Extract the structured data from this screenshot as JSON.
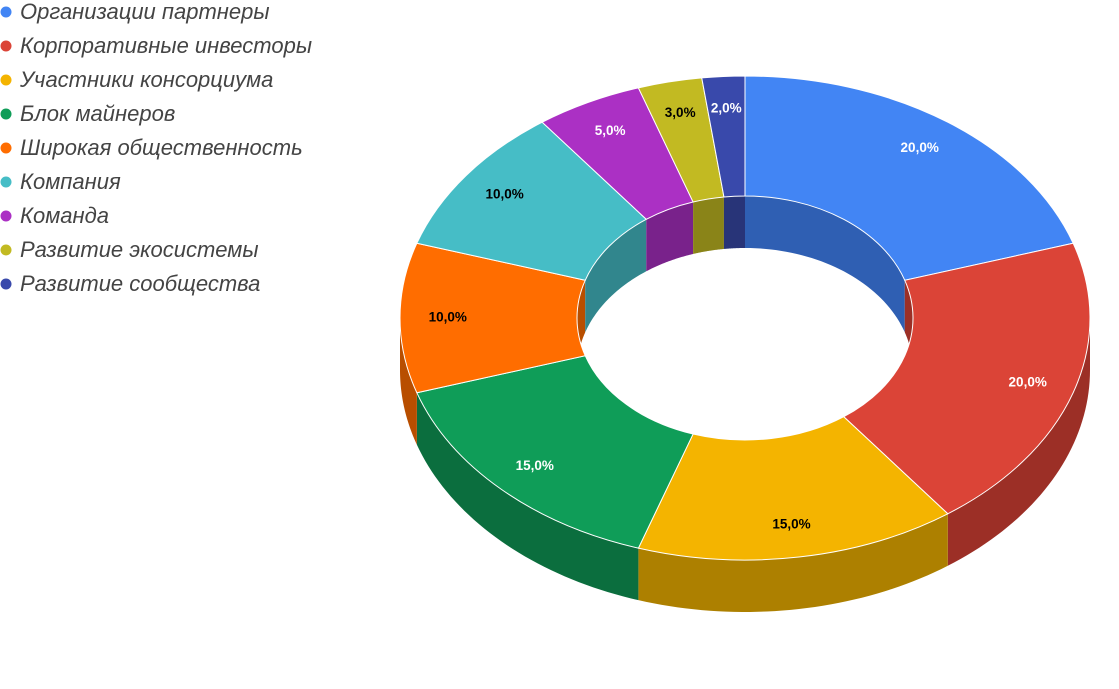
{
  "chart_data": {
    "type": "pie",
    "donut": true,
    "three_d": true,
    "title": "",
    "legend_position": "top-left",
    "categories": [
      "Организации партнеры",
      "Корпоративные инвесторы",
      "Участники консорциума",
      "Блок майнеров",
      "Широкая общественность",
      "Компания",
      "Команда",
      "Развитие экосистемы",
      "Развитие сообщества"
    ],
    "values": [
      20,
      20,
      15,
      15,
      10,
      10,
      5,
      3,
      2
    ],
    "labels": [
      "20,0%",
      "20,0%",
      "15,0%",
      "15,0%",
      "10,0%",
      "10,0%",
      "5,0%",
      "3,0%",
      "2,0%"
    ],
    "colors": [
      "#4285f4",
      "#db4437",
      "#f4b400",
      "#0f9d58",
      "#ff6d00",
      "#46bdc6",
      "#ab30c4",
      "#c2ba22",
      "#3949ab"
    ],
    "side_colors": [
      "#2f5fb3",
      "#9c2f26",
      "#ad8000",
      "#0b6e3e",
      "#b84e00",
      "#31868d",
      "#79228b",
      "#8a8418",
      "#283478"
    ],
    "label_colors": [
      "#ffffff",
      "#ffffff",
      "#000000",
      "#ffffff",
      "#000000",
      "#000000",
      "#ffffff",
      "#000000",
      "#ffffff"
    ]
  }
}
